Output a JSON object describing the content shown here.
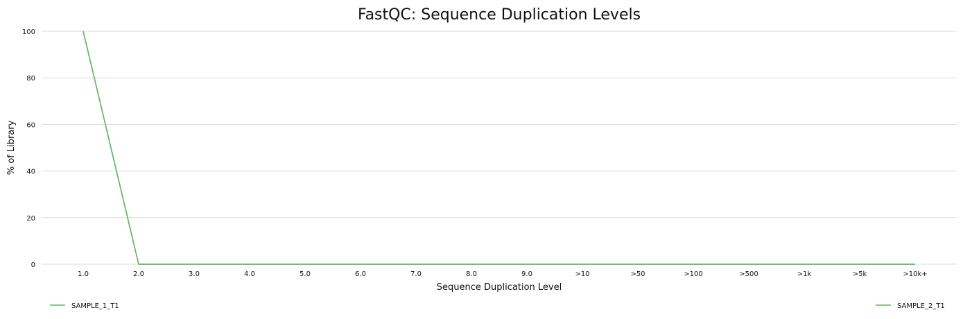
{
  "chart_data": {
    "type": "line",
    "title": "FastQC: Sequence Duplication Levels",
    "xlabel": "Sequence Duplication Level",
    "ylabel": "% of Library",
    "categories": [
      "1.0",
      "2.0",
      "3.0",
      "4.0",
      "5.0",
      "6.0",
      "7.0",
      "8.0",
      "9.0",
      ">10",
      ">50",
      ">100",
      ">500",
      ">1k",
      ">5k",
      ">10k+"
    ],
    "y_ticks": [
      "0",
      "20",
      "40",
      "60",
      "80",
      "100"
    ],
    "ylim": [
      0,
      100
    ],
    "grid": true,
    "legend_placement": "bottom",
    "series": [
      {
        "name": "SAMPLE_1_T1",
        "color": "#5cb85c",
        "values": [
          100,
          0,
          0,
          0,
          0,
          0,
          0,
          0,
          0,
          0,
          0,
          0,
          0,
          0,
          0,
          0
        ]
      },
      {
        "name": "SAMPLE_2_T1",
        "color": "#5cb85c",
        "values": [
          100,
          0,
          0,
          0,
          0,
          0,
          0,
          0,
          0,
          0,
          0,
          0,
          0,
          0,
          0,
          0
        ]
      }
    ]
  }
}
